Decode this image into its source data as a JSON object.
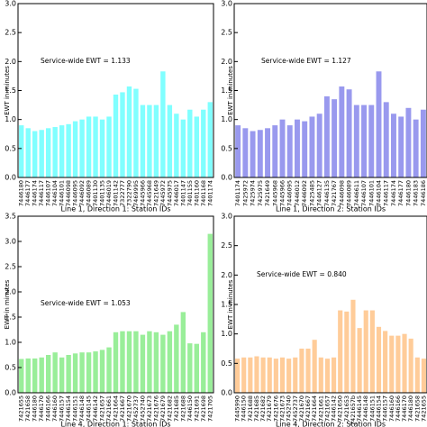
{
  "chart_data": [
    {
      "type": "bar",
      "xlabel": "Line 1, Direction 1: Station IDs",
      "ylabel": "EWT in minutes",
      "annotation": "Service-wide EWT = 1.133",
      "color": "#80ffff",
      "categories": [
        "7446180",
        "7446177",
        "7446174",
        "7446117",
        "7446107",
        "7446104",
        "7446101",
        "7446098",
        "7446095",
        "7446092",
        "7446089",
        "7401130",
        "7401135",
        "7446019",
        "7401142",
        "7322777",
        "7322790",
        "7469995",
        "7445966",
        "7445968",
        "7421649",
        "7445972",
        "7445975",
        "7446017",
        "7401147",
        "7401155",
        "7401160",
        "7401168",
        "7401174"
      ],
      "values": [
        0.9,
        0.85,
        0.8,
        0.82,
        0.85,
        0.87,
        0.9,
        0.92,
        0.97,
        1.0,
        1.05,
        1.05,
        1.0,
        1.05,
        1.43,
        1.47,
        1.57,
        1.53,
        1.25,
        1.25,
        1.25,
        1.83,
        1.25,
        1.1,
        1.0,
        1.17,
        1.05,
        1.17,
        1.3
      ],
      "ylim": [
        0,
        3
      ],
      "yticks": [
        {
          "value": 0,
          "label": "0.0"
        },
        {
          "value": 0.5,
          "label": "0.5"
        },
        {
          "value": 1,
          "label": "1.0"
        },
        {
          "value": 1.5,
          "label": "1.5"
        },
        {
          "value": 2,
          "label": "2.0"
        },
        {
          "value": 2.5,
          "label": "2.5"
        },
        {
          "value": 3,
          "label": "3.0"
        }
      ]
    },
    {
      "type": "bar",
      "xlabel": "Line 1, Direction 2: Station IDs",
      "ylabel": "EWT in minutes",
      "annotation": "Service-wide EWT = 1.127",
      "color": "#9999ee",
      "categories": [
        "7401174",
        "7425972",
        "7425974",
        "7425975",
        "7421649",
        "7445968",
        "7445966",
        "7446095",
        "7446012",
        "7446092",
        "7425485",
        "7446127",
        "7446135",
        "7421767",
        "7446098",
        "7446089",
        "7446611",
        "7446107",
        "7446101",
        "7446104",
        "7446117",
        "7446174",
        "7446177",
        "7446180",
        "7446183",
        "7446186"
      ],
      "values": [
        0.9,
        0.85,
        0.8,
        0.82,
        0.85,
        0.9,
        1.0,
        0.9,
        1.0,
        0.97,
        1.05,
        1.1,
        1.4,
        1.35,
        1.57,
        1.52,
        1.25,
        1.25,
        1.25,
        1.83,
        1.3,
        1.1,
        1.05,
        1.2,
        1.0,
        1.17
      ],
      "ylim": [
        0,
        3
      ],
      "yticks": [
        {
          "value": 0,
          "label": "0.0"
        },
        {
          "value": 0.5,
          "label": "0.5"
        },
        {
          "value": 1,
          "label": "1.0"
        },
        {
          "value": 1.5,
          "label": "1.5"
        },
        {
          "value": 2,
          "label": "2.0"
        },
        {
          "value": 2.5,
          "label": "2.5"
        },
        {
          "value": 3,
          "label": "3.0"
        }
      ]
    },
    {
      "type": "bar",
      "xlabel": "Line 4, Direction 1: Station IDs",
      "ylabel": "EWT in minutes",
      "annotation": "Service-wide EWT = 1.053",
      "color": "#99ee99",
      "categories": [
        "7421655",
        "7421658",
        "7446180",
        "7446170",
        "7446166",
        "7446160",
        "7446157",
        "7446154",
        "7446151",
        "7446148",
        "7446145",
        "7446142",
        "7421657",
        "7421661",
        "7421664",
        "7421667",
        "7421670",
        "7452737",
        "7452740",
        "7421673",
        "7421676",
        "7421679",
        "7421682",
        "7421685",
        "7421688",
        "7446150",
        "7421691",
        "7421698",
        "7421705"
      ],
      "values": [
        0.67,
        0.68,
        0.68,
        0.7,
        0.75,
        0.8,
        0.7,
        0.75,
        0.78,
        0.8,
        0.8,
        0.82,
        0.85,
        0.9,
        1.2,
        1.22,
        1.22,
        1.22,
        1.15,
        1.22,
        1.2,
        1.15,
        1.22,
        1.35,
        1.6,
        0.98,
        0.97,
        1.2,
        3.15
      ],
      "ylim": [
        0,
        3.5
      ],
      "yticks": [
        {
          "value": 0,
          "label": "0.0"
        },
        {
          "value": 0.5,
          "label": "0.5"
        },
        {
          "value": 1,
          "label": "1.0"
        },
        {
          "value": 1.5,
          "label": "1.5"
        },
        {
          "value": 2,
          "label": "2.0"
        },
        {
          "value": 2.5,
          "label": "2.5"
        },
        {
          "value": 3,
          "label": "3.0"
        },
        {
          "value": 3.5,
          "label": "3.5"
        }
      ]
    },
    {
      "type": "bar",
      "xlabel": "Line 4, Direction 2: Station IDs",
      "ylabel": "EWT in minutes",
      "annotation": "Service-wide EWT = 0.840",
      "color": "#ffcc99",
      "categories": [
        "7445990",
        "7446150",
        "7421688",
        "7421685",
        "7421682",
        "7421679",
        "7421676",
        "7421673",
        "7452740",
        "7452737",
        "7421670",
        "7421667",
        "7421664",
        "7421661",
        "7421657",
        "7446142",
        "7421650",
        "7421653",
        "7421657b",
        "7446145",
        "7446148",
        "7446151",
        "7446154",
        "7446157",
        "7446160",
        "7446166",
        "7446170",
        "7446180",
        "7421658",
        "7421655"
      ],
      "values": [
        0.58,
        0.6,
        0.6,
        0.62,
        0.6,
        0.6,
        0.58,
        0.6,
        0.58,
        0.6,
        0.75,
        0.75,
        0.9,
        0.6,
        0.58,
        0.6,
        1.4,
        1.38,
        1.58,
        1.1,
        1.4,
        1.4,
        1.12,
        1.05,
        0.97,
        0.97,
        1.0,
        0.92,
        0.6,
        0.58
      ],
      "ylim": [
        0,
        3
      ],
      "yticks": [
        {
          "value": 0,
          "label": "0.0"
        },
        {
          "value": 0.5,
          "label": "0.5"
        },
        {
          "value": 1,
          "label": "1.0"
        },
        {
          "value": 1.5,
          "label": "1.5"
        },
        {
          "value": 2,
          "label": "2.0"
        },
        {
          "value": 2.5,
          "label": "2.5"
        },
        {
          "value": 3,
          "label": "3.0"
        }
      ]
    }
  ]
}
